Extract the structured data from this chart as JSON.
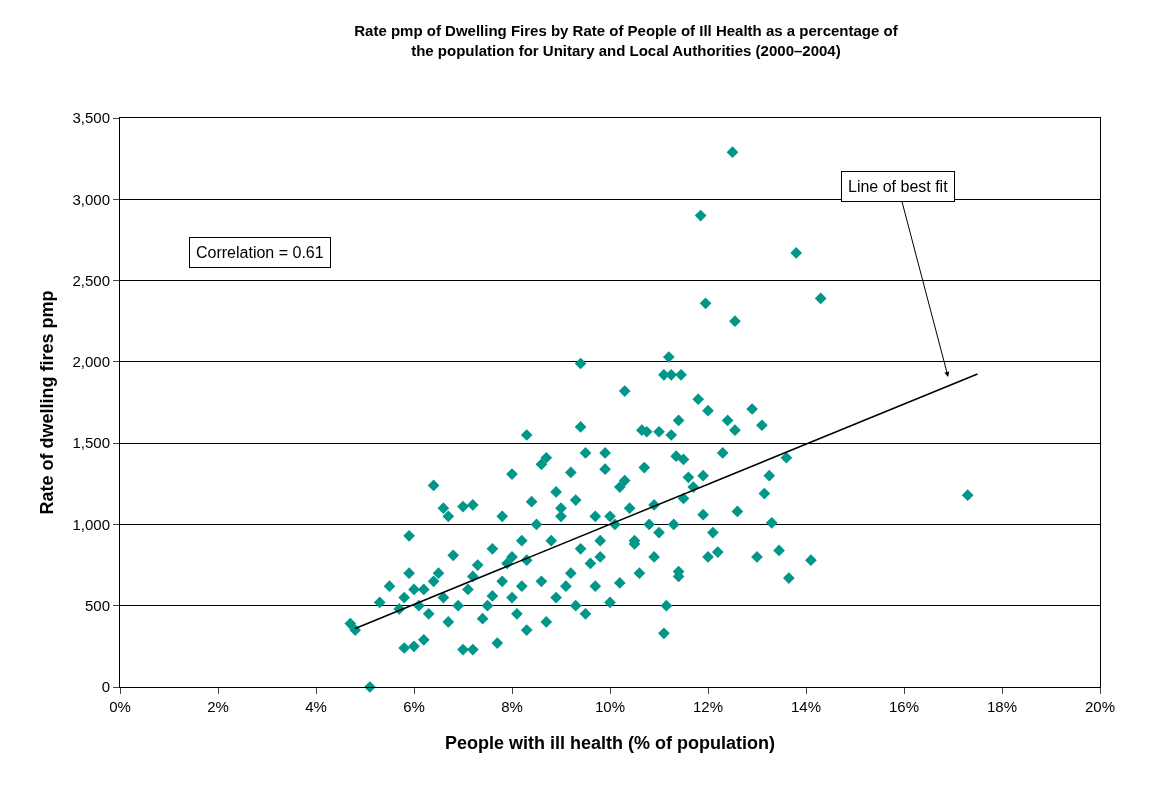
{
  "chart_data": {
    "type": "scatter",
    "title": "Rate pmp of Dwelling Fires by Rate of People of Ill Health as a percentage of the population for Unitary and Local Authorities (2000–2004)",
    "xlabel": "People with ill health (% of population)",
    "ylabel": "Rate of dwelling fires pmp",
    "annotations": [
      "Correlation = 0.61",
      "Line of best fit"
    ],
    "series": [
      {
        "color": "#00968a",
        "marker": "diamond",
        "x": [
          12.5,
          11.85,
          13.8,
          14.3,
          11.95,
          12.55,
          9.4,
          11.2,
          11.1,
          11.25,
          11.45,
          10.3,
          12.9,
          11.8,
          12.0,
          13.1,
          12.4,
          12.55,
          9.4,
          8.3,
          11.0,
          10.75,
          10.65,
          11.25,
          17.3,
          13.6,
          14.1,
          13.65,
          13.0,
          13.45,
          13.3,
          13.15,
          13.25,
          11.1,
          11.15,
          12.2,
          12.0,
          12.1,
          12.6,
          11.4,
          11.35,
          11.7,
          11.9,
          11.9,
          11.4,
          11.4,
          10.5,
          9.5,
          9.9,
          10.2,
          9.2,
          8.7,
          8.6,
          8.0,
          6.4,
          6.6,
          6.7,
          7.2,
          7.0,
          5.9,
          4.7,
          4.8,
          5.1,
          5.8,
          6.0,
          6.2,
          7.0,
          7.2,
          7.7,
          8.3,
          8.7,
          9.5,
          10.0,
          9.7,
          10.2,
          9.6,
          10.1,
          9.8,
          10.6,
          10.9,
          11.3,
          10.9,
          11.5,
          8.0,
          7.8,
          7.5,
          6.5,
          6.2,
          5.8,
          5.5,
          5.9,
          6.1,
          6.3,
          5.3,
          6.7,
          7.1,
          7.3,
          7.6,
          7.9,
          8.2,
          8.5,
          8.8,
          9.0,
          9.3,
          8.4,
          7.8,
          8.1,
          8.9,
          9.2,
          9.4,
          8.6,
          8.0,
          7.4,
          6.9,
          6.6,
          7.2,
          8.3,
          8.9,
          9.0,
          10.4,
          10.7,
          10.0,
          10.3,
          9.7,
          9.9,
          10.5,
          8.2,
          7.6,
          6.8,
          6.0,
          5.7,
          6.4,
          9.1,
          9.3,
          9.8,
          10.8,
          11.0,
          12.3,
          11.6,
          11.5
        ],
        "values": [
          3290,
          2900,
          2670,
          2390,
          2360,
          2250,
          1990,
          2030,
          1920,
          1920,
          1920,
          1820,
          1710,
          1770,
          1700,
          1610,
          1640,
          1580,
          1600,
          1550,
          1570,
          1570,
          1580,
          1550,
          1180,
          1410,
          780,
          670,
          800,
          840,
          1010,
          1190,
          1300,
          330,
          500,
          830,
          800,
          950,
          1080,
          1640,
          1420,
          1230,
          1300,
          1060,
          710,
          680,
          900,
          1440,
          1440,
          1230,
          1320,
          1410,
          1370,
          1310,
          1240,
          1100,
          1050,
          1120,
          1110,
          930,
          390,
          350,
          0,
          240,
          250,
          290,
          230,
          230,
          270,
          350,
          400,
          450,
          520,
          620,
          640,
          760,
          1000,
          900,
          700,
          800,
          1000,
          1120,
          1160,
          800,
          650,
          500,
          700,
          600,
          550,
          620,
          700,
          500,
          450,
          520,
          400,
          600,
          750,
          850,
          760,
          900,
          1000,
          900,
          1050,
          1150,
          1140,
          1050,
          450,
          550,
          700,
          850,
          650,
          550,
          420,
          500,
          550,
          680,
          780,
          1200,
          1100,
          1100,
          1350,
          1050,
          1270,
          1050,
          1340,
          880,
          620,
          560,
          810,
          600,
          480,
          650,
          620,
          500,
          800,
          1000,
          950,
          1440,
          1290,
          1400
        ]
      },
      {
        "type": "line",
        "color": "#000000",
        "marker": "none",
        "line_style": "solid",
        "x": [
          4.8,
          17.5
        ],
        "values": [
          360,
          1925
        ]
      }
    ],
    "xlim": [
      0,
      20
    ],
    "xticks": [
      {
        "value": 0,
        "label": "0%"
      },
      {
        "value": 2,
        "label": "2%"
      },
      {
        "value": 4,
        "label": "4%"
      },
      {
        "value": 6,
        "label": "6%"
      },
      {
        "value": 8,
        "label": "8%"
      },
      {
        "value": 10,
        "label": "10%"
      },
      {
        "value": 12,
        "label": "12%"
      },
      {
        "value": 14,
        "label": "14%"
      },
      {
        "value": 16,
        "label": "16%"
      },
      {
        "value": 18,
        "label": "18%"
      },
      {
        "value": 20,
        "label": "20%"
      }
    ],
    "ylim": [
      0,
      3500
    ],
    "yticks": [
      0,
      500,
      {
        "value": 1000,
        "label": "1,000"
      },
      {
        "value": 1500,
        "label": "1,500"
      },
      {
        "value": 2000,
        "label": "2,000"
      },
      {
        "value": 2500,
        "label": "2,500"
      },
      {
        "value": 3000,
        "label": "3,000"
      },
      {
        "value": 3500,
        "label": "3,500"
      }
    ],
    "grid": "y"
  }
}
